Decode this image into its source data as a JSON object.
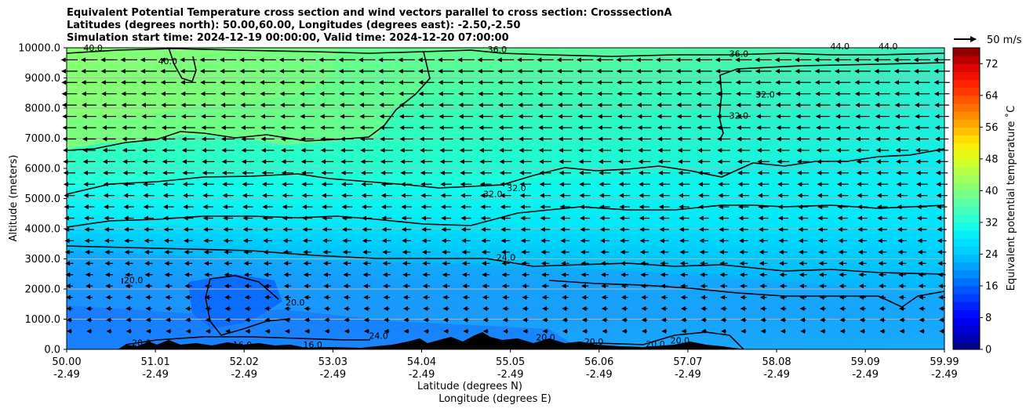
{
  "titles": {
    "line1": "Equivalent Potential Temperature cross section and wind vectors parallel to cross section: CrosssectionA",
    "line2": "Latitudes (degrees north): 50.00,60.00, Longitudes (degrees east): -2.50,-2.50",
    "line3": "Simulation start time: 2024-12-19 00:00:00, Valid time: 2024-12-20 07:00:00"
  },
  "chart_data": {
    "type": "heatmap",
    "subtype": "filled-contour cross section with wind vectors",
    "title": "Equivalent Potential Temperature cross section and wind vectors parallel to cross section: CrosssectionA",
    "ylabel": "Altitude (meters)",
    "xlabel_lines": [
      "Latitude (degrees N)",
      "Longitude (degrees E)"
    ],
    "ylim": [
      0,
      10000
    ],
    "y_ticks": [
      "0.0",
      "1000.0",
      "2000.0",
      "3000.0",
      "4000.0",
      "5000.0",
      "6000.0",
      "7000.0",
      "8000.0",
      "9000.0",
      "10000.0"
    ],
    "y_tick_values": [
      0,
      1000,
      2000,
      3000,
      4000,
      5000,
      6000,
      7000,
      8000,
      9000,
      10000
    ],
    "xlim": [
      50.0,
      59.99
    ],
    "x_tick_values": [
      50.0,
      51.01,
      52.02,
      53.03,
      54.04,
      55.05,
      56.06,
      57.07,
      58.08,
      59.09,
      59.99
    ],
    "x_ticks_lat": [
      "50.00",
      "51.01",
      "52.02",
      "53.03",
      "54.04",
      "55.05",
      "56.06",
      "57.07",
      "58.08",
      "59.09",
      "59.99"
    ],
    "x_ticks_lon": [
      "-2.49",
      "-2.49",
      "-2.49",
      "-2.49",
      "-2.49",
      "-2.49",
      "-2.49",
      "-2.49",
      "-2.49",
      "-2.49",
      "-2.49"
    ],
    "grid": "horizontal",
    "colorbar": {
      "label": "Equivalent potential temperature ˚C",
      "range": [
        0,
        76
      ],
      "tick_values": [
        0,
        8,
        16,
        24,
        32,
        40,
        48,
        56,
        64,
        72
      ],
      "tick_labels": [
        "0",
        "8",
        "16",
        "24",
        "32",
        "40",
        "48",
        "56",
        "64",
        "72"
      ]
    },
    "quiver_key": {
      "label": "50 m/s"
    },
    "contour_levels": [
      20,
      24,
      28,
      32,
      36,
      40,
      44
    ],
    "contour_labels": [
      {
        "text": "40.0",
        "lat": 50.3,
        "alt": 9900
      },
      {
        "text": "36.0",
        "lat": 54.9,
        "alt": 9850
      },
      {
        "text": "36.0",
        "lat": 57.65,
        "alt": 9700
      },
      {
        "text": "40.0",
        "lat": 51.15,
        "alt": 9450
      },
      {
        "text": "44.0",
        "lat": 58.8,
        "alt": 9950
      },
      {
        "text": "44.0",
        "lat": 59.35,
        "alt": 9950
      },
      {
        "text": "32.0",
        "lat": 57.95,
        "alt": 8350
      },
      {
        "text": "32.0",
        "lat": 57.65,
        "alt": 7650
      },
      {
        "text": "32.0",
        "lat": 55.12,
        "alt": 5250
      },
      {
        "text": "32.0",
        "lat": 54.85,
        "alt": 5050
      },
      {
        "text": "24.0",
        "lat": 55.0,
        "alt": 2950
      },
      {
        "text": "20.0",
        "lat": 50.76,
        "alt": 2200
      },
      {
        "text": "20.0",
        "lat": 52.6,
        "alt": 1450
      },
      {
        "text": "20.0",
        "lat": 50.85,
        "alt": 120
      },
      {
        "text": "16.0",
        "lat": 52.0,
        "alt": 50
      },
      {
        "text": "16.0",
        "lat": 52.8,
        "alt": 50
      },
      {
        "text": "24.0",
        "lat": 53.55,
        "alt": 350
      },
      {
        "text": "20.0",
        "lat": 55.45,
        "alt": 300
      },
      {
        "text": "20.0",
        "lat": 56.0,
        "alt": 150
      },
      {
        "text": "20.0",
        "lat": 56.7,
        "alt": 80
      },
      {
        "text": "20.0",
        "lat": 56.98,
        "alt": 200
      }
    ],
    "theta_e_field_samples": [
      {
        "alt": 500,
        "values": [
          19,
          18,
          17,
          16,
          17,
          18,
          19,
          20,
          21,
          22,
          22
        ]
      },
      {
        "alt": 2000,
        "values": [
          21,
          20,
          18,
          19,
          20,
          21,
          22,
          22,
          23,
          23,
          23
        ]
      },
      {
        "alt": 3000,
        "values": [
          25,
          25,
          25,
          25,
          24,
          24,
          25,
          25,
          26,
          26,
          26
        ]
      },
      {
        "alt": 4500,
        "values": [
          30,
          30,
          30,
          29,
          29,
          29,
          29,
          29,
          29,
          29,
          29
        ]
      },
      {
        "alt": 6000,
        "values": [
          34,
          34,
          34,
          33,
          32,
          32,
          31,
          31,
          31,
          31,
          31
        ]
      },
      {
        "alt": 7500,
        "values": [
          38,
          38,
          38,
          36,
          35,
          35,
          34,
          34,
          34,
          34,
          34
        ]
      },
      {
        "alt": 9000,
        "values": [
          40,
          40,
          40,
          38,
          36,
          36,
          35,
          35,
          34,
          34,
          35
        ]
      },
      {
        "alt": 10000,
        "values": [
          41,
          41,
          41,
          39,
          37,
          37,
          37,
          38,
          42,
          44,
          44
        ]
      }
    ],
    "wind_vectors": {
      "direction": "southward (toward decreasing latitude)",
      "typical_speed_ms": [
        8,
        20
      ]
    }
  }
}
